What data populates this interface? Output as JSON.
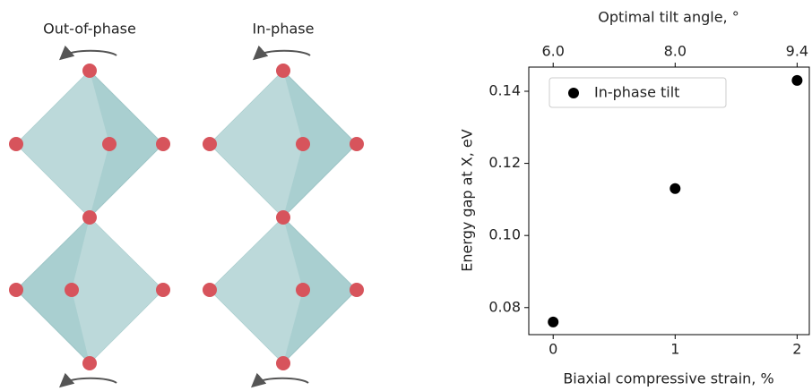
{
  "diagram": {
    "labels": [
      "Out-of-phase",
      "In-phase"
    ]
  },
  "chart_data": {
    "type": "scatter",
    "xlabel": "Biaxial compressive strain, %",
    "ylabel": "Energy gap at X, eV",
    "x2label": "Optimal tilt angle, °",
    "series": [
      {
        "name": "In-phase tilt",
        "color": "#000000",
        "x": [
          0,
          1,
          2
        ],
        "values": [
          0.076,
          0.113,
          0.143
        ]
      }
    ],
    "xlim": [
      -0.2,
      2.1
    ],
    "ylim": [
      0.0725,
      0.1467
    ],
    "xticks": [
      0,
      1,
      2
    ],
    "x2ticks": [
      {
        "value": 0,
        "label": "6.0"
      },
      {
        "value": 1,
        "label": "8.0"
      },
      {
        "value": 2,
        "label": "9.4"
      }
    ],
    "yticks": [
      0.08,
      {
        "value": 0.1,
        "label": "0.10"
      },
      0.12,
      0.14
    ],
    "legend": "upper left",
    "grid": false
  }
}
